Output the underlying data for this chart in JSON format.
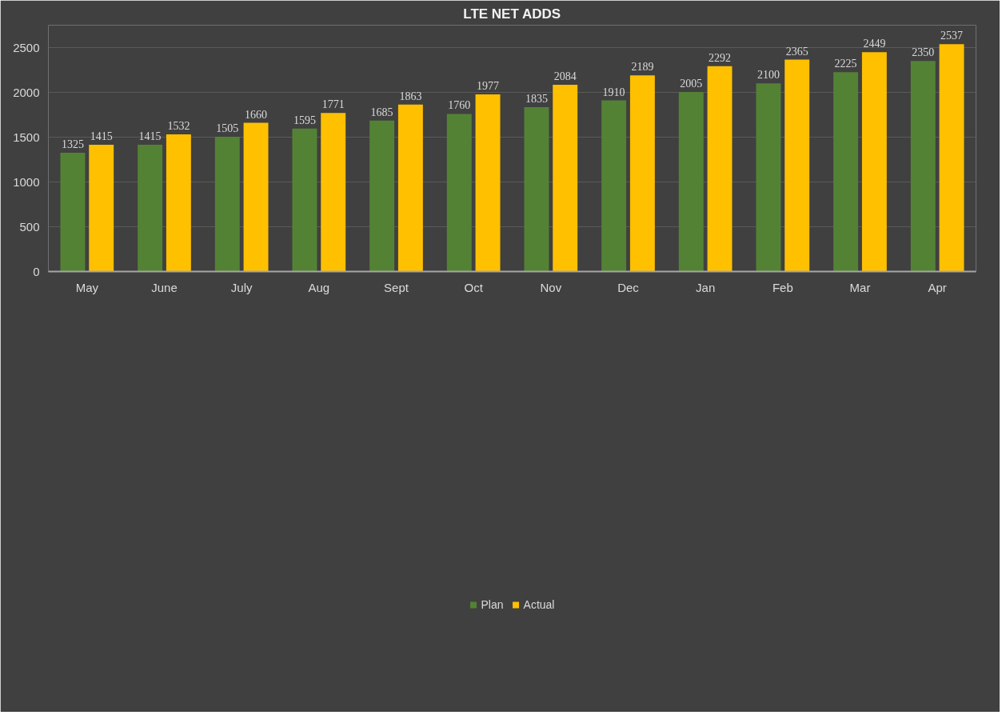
{
  "chart_data": {
    "type": "bar",
    "title": "LTE NET ADDS",
    "categories": [
      "May",
      "June",
      "July",
      "Aug",
      "Sept",
      "Oct",
      "Nov",
      "Dec",
      "Jan",
      "Feb",
      "Mar",
      "Apr"
    ],
    "series": [
      {
        "name": "Plan",
        "color": "#548235",
        "values": [
          1325,
          1415,
          1505,
          1595,
          1685,
          1760,
          1835,
          1910,
          2005,
          2100,
          2225,
          2350
        ]
      },
      {
        "name": "Actual",
        "color": "#ffc000",
        "values": [
          1415,
          1532,
          1660,
          1771,
          1863,
          1977,
          2084,
          2189,
          2292,
          2365,
          2449,
          2537
        ]
      }
    ],
    "ylim": [
      0,
      2750
    ],
    "yticks": [
      0,
      500,
      1000,
      1500,
      2000,
      2500
    ],
    "grid": "y",
    "legend": "bottom",
    "data_labels": true
  }
}
